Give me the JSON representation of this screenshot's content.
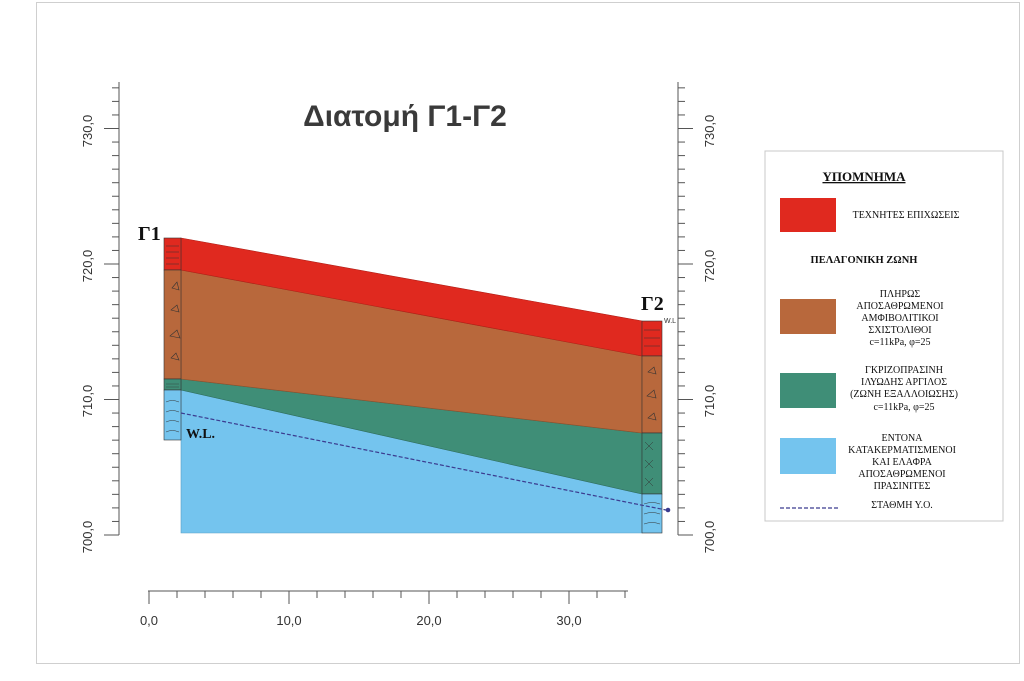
{
  "title": "Διατομή Γ1-Γ2",
  "y_axis": {
    "ticks": [
      "700,0",
      "710,0",
      "720,0",
      "730,0"
    ]
  },
  "x_axis": {
    "ticks": [
      "0,0",
      "10,0",
      "20,0",
      "30,0"
    ]
  },
  "boreholes": {
    "left": "Γ1",
    "right": "Γ2"
  },
  "water_level": {
    "label": "W.L.",
    "small_label": "W.L"
  },
  "legend": {
    "title": "ΥΠΟΜΝΗΜΑ",
    "zone": "ΠΕΛΑΓΟΝΙΚΗ ΖΩΝΗ",
    "items": [
      {
        "color": "#e0291f",
        "lines": [
          "ΤΕΧΝΗΤΕΣ ΕΠΙΧΩΣΕΙΣ"
        ]
      },
      {
        "color": "#b8683c",
        "lines": [
          "ΠΛΗΡΩΣ",
          "ΑΠΟΣΑΘΡΩΜΕΝΟΙ",
          "ΑΜΦΙΒΟΛΙΤΙΚΟΙ",
          "ΣΧΙΣΤΟΛΙΘΟΙ",
          "c=11kPa, φ=25"
        ]
      },
      {
        "color": "#3f8e77",
        "lines": [
          "ΓΚΡΙΖΟΠΡΑΣΙΝΗ",
          "ΙΛΥΩΔΗΣ ΑΡΓΙΛΟΣ",
          "(ΖΩΝΗ ΕΞΑΛΛΟΙΩΣΗΣ)",
          "c=11kPa, φ=25"
        ]
      },
      {
        "color": "#74c4ee",
        "lines": [
          "ΕΝΤΟΝΑ",
          "ΚΑΤΑΚΕΡΜΑΤΙΣΜΕΝΟΙ",
          "ΚΑΙ ΕΛΑΦΡΑ",
          "ΑΠΟΣΑΘΡΩΜΕΝΟΙ",
          "ΠΡΑΣΙΝΙΤΕΣ"
        ]
      }
    ],
    "water_item": "ΣΤΑΘΜΗ Υ.Ο.",
    "water_color": "#3b3b8f"
  }
}
